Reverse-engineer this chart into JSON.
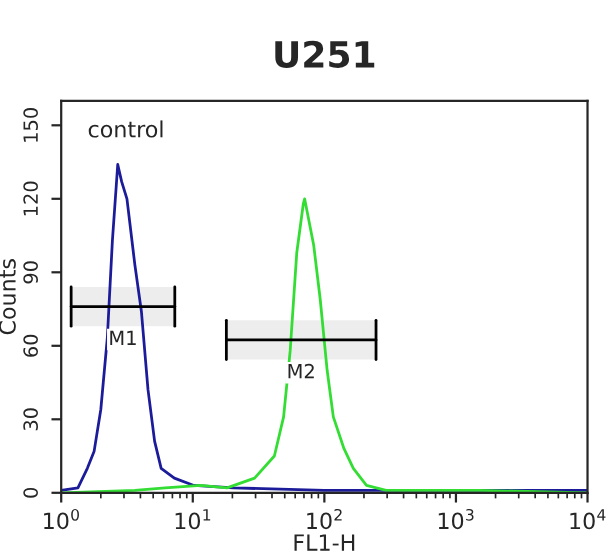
{
  "chart_data": {
    "type": "line",
    "title": "U251",
    "xlabel": "FL1-H",
    "ylabel": "Counts",
    "log": "x",
    "xlim": [
      1,
      10000
    ],
    "ylim": [
      0,
      160
    ],
    "xticks": [
      {
        "value": 1,
        "label": "10$^{0}$"
      },
      {
        "value": 10,
        "label": "10$^{1}$"
      },
      {
        "value": 100,
        "label": "10$^{2}$"
      },
      {
        "value": 1000,
        "label": "10$^{3}$"
      },
      {
        "value": 10000,
        "label": "10$^{4}$"
      }
    ],
    "yticks": [
      0,
      30,
      60,
      90,
      120,
      150
    ],
    "grid": false,
    "series": [
      {
        "color": "#1c1c9a",
        "x": [
          1,
          1.34,
          1.58,
          1.78,
          2.0,
          2.24,
          2.45,
          2.69,
          2.88,
          3.16,
          3.63,
          4.07,
          4.57,
          5.13,
          5.75,
          7.24,
          10.2,
          20.4,
          100,
          1000,
          10000
        ],
        "values": [
          1,
          2,
          10,
          17,
          34,
          63,
          103,
          134,
          127,
          120,
          93,
          74,
          42,
          21,
          10,
          6,
          3,
          2,
          1,
          1,
          1
        ]
      },
      {
        "color": "#33dd33",
        "x": [
          1,
          3.63,
          6.17,
          11.5,
          18.2,
          29.5,
          41.7,
          49,
          55,
          61.7,
          69.2,
          70.8,
          83,
          93,
          105,
          117,
          141,
          166,
          209,
          295,
          1514,
          9772
        ],
        "values": [
          0,
          1,
          2,
          3,
          2,
          6,
          15,
          31,
          58,
          98,
          118,
          120,
          101,
          79,
          50,
          31,
          18,
          10,
          3,
          1,
          1,
          0
        ]
      }
    ],
    "bands": [
      {
        "axis": "x",
        "from": 1.19,
        "to": 7.3,
        "label": "M1"
      },
      {
        "axis": "x",
        "from": 18,
        "to": 247,
        "label": "M2"
      }
    ],
    "annotations": [
      "control"
    ]
  }
}
